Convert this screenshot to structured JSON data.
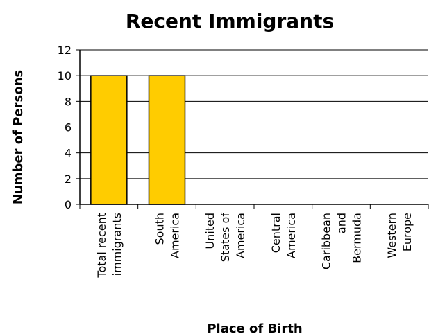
{
  "chart_data": {
    "type": "bar",
    "title": "Recent Immigrants",
    "xlabel": "Place of Birth",
    "ylabel": "Number of Persons",
    "categories": [
      "Total recent immigrants",
      "South America",
      "United States of America",
      "Central America",
      "Caribbean and Bermuda",
      "Western Europe"
    ],
    "category_lines": [
      [
        "Total recent",
        "immigrants"
      ],
      [
        "South",
        "America"
      ],
      [
        "United",
        "States of",
        "America"
      ],
      [
        "Central",
        "America"
      ],
      [
        "Caribbean",
        "and",
        "Bermuda"
      ],
      [
        "Western",
        "Europe"
      ]
    ],
    "values": [
      10,
      10,
      0,
      0,
      0,
      0
    ],
    "ylim": [
      0,
      12
    ],
    "yticks": [
      0,
      2,
      4,
      6,
      8,
      10,
      12
    ],
    "grid": true,
    "legend": "none",
    "colors": {
      "bar_fill": "#FFCC00",
      "bar_stroke": "#000000",
      "grid": "#000000",
      "background": "#FFFFFF"
    }
  }
}
